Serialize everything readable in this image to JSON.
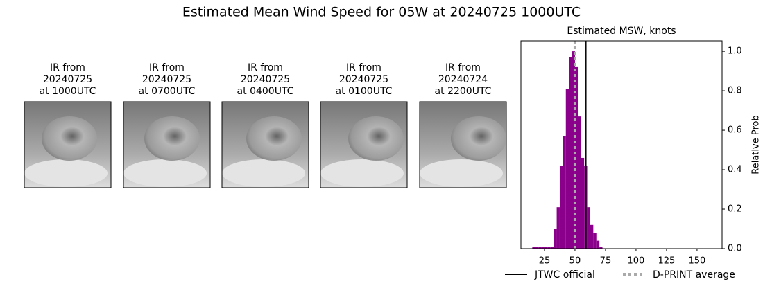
{
  "title": "Estimated Mean Wind Speed for 05W at 20240725 1000UTC",
  "panels": [
    {
      "lines": [
        "IR from",
        "20240725",
        "at 1000UTC"
      ]
    },
    {
      "lines": [
        "IR from",
        "20240725",
        "at 0700UTC"
      ]
    },
    {
      "lines": [
        "IR from",
        "20240725",
        "at 0400UTC"
      ]
    },
    {
      "lines": [
        "IR from",
        "20240725",
        "at 0100UTC"
      ]
    },
    {
      "lines": [
        "IR from",
        "20240724",
        "at 2200UTC"
      ]
    }
  ],
  "chart_data": {
    "type": "histogram",
    "title": "Estimated MSW, knots",
    "ylabel": "Relative Prob",
    "color": "#8b008b",
    "bins": [
      15,
      17.5,
      20,
      22.5,
      25,
      27.5,
      30,
      32.5,
      35,
      37.5,
      40,
      42.5,
      45,
      47.5,
      50,
      52.5,
      55,
      57.5,
      60,
      62.5,
      65,
      67.5,
      70,
      72.5
    ],
    "values": [
      0.01,
      0.01,
      0.01,
      0.01,
      0.01,
      0.01,
      0.01,
      0.1,
      0.21,
      0.42,
      0.57,
      0.81,
      0.97,
      1.0,
      0.92,
      0.67,
      0.46,
      0.42,
      0.21,
      0.12,
      0.08,
      0.04,
      0.01
    ],
    "xlim": [
      5.7,
      170.5
    ],
    "xticks": [
      25,
      50,
      75,
      100,
      125,
      150
    ],
    "ylim": [
      0,
      1.053
    ],
    "yticks": [
      {
        "value": 0,
        "label": "0.0"
      },
      0.2,
      0.4,
      0.6,
      0.8,
      {
        "value": 1,
        "label": "1.0"
      }
    ],
    "lines": [
      {
        "name": "JTWC official",
        "color": "#000000",
        "value": 59,
        "style": "solid"
      },
      {
        "name": "D-PRINT average",
        "color": "#aaaaaa",
        "value": 50,
        "style": "dotted"
      }
    ]
  }
}
